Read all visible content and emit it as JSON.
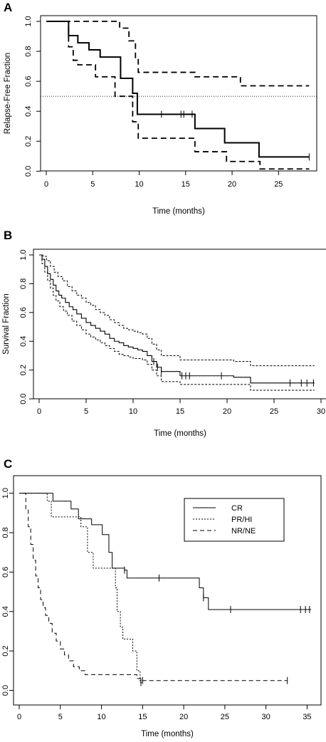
{
  "chart_data": [
    {
      "panel": "A",
      "type": "line",
      "step": true,
      "xlabel": "Time (months)",
      "ylabel": "Relapse-Free Fraction",
      "xlim": [
        0,
        28.5
      ],
      "ylim": [
        0,
        1
      ],
      "xticks": [
        0,
        5,
        10,
        15,
        20,
        25
      ],
      "yticks": [
        "0.0",
        "0.2",
        "0.4",
        "0.6",
        "0.8",
        "1.0"
      ],
      "reference_line": 0.5,
      "series": [
        {
          "role": "estimate",
          "style": "solid",
          "width": 2,
          "x": [
            0,
            2.4,
            3.4,
            4.6,
            5.8,
            8,
            9.3,
            9.8,
            16,
            19.2,
            22.9,
            28.3
          ],
          "y": [
            1.0,
            0.905,
            0.857,
            0.81,
            0.762,
            0.62,
            0.52,
            0.38,
            0.285,
            0.19,
            0.095,
            0.095
          ],
          "censor_x": [
            12.4,
            14.5,
            14.8,
            15.7,
            28.3
          ]
        },
        {
          "role": "upper-ci",
          "style": "dashed",
          "width": 1.8,
          "x": [
            0,
            2.5,
            7.9,
            8.9,
            9.6,
            9.9,
            16,
            20.9,
            28.3
          ],
          "y": [
            1.0,
            1.0,
            0.955,
            0.87,
            0.75,
            0.66,
            0.63,
            0.57,
            0.57
          ],
          "censor_x": []
        },
        {
          "role": "lower-ci",
          "style": "dashed",
          "width": 1.8,
          "x": [
            0,
            2.4,
            2.9,
            3.4,
            5.3,
            7.4,
            9.3,
            9.9,
            16,
            19.4,
            23,
            28.3
          ],
          "y": [
            1.0,
            0.83,
            0.74,
            0.71,
            0.63,
            0.5,
            0.33,
            0.22,
            0.13,
            0.065,
            0.015,
            0.015
          ],
          "censor_x": []
        }
      ]
    },
    {
      "panel": "B",
      "type": "line",
      "step": true,
      "xlabel": "Time (months)",
      "ylabel": "Survival Fraction",
      "xlim": [
        0,
        30
      ],
      "ylim": [
        0,
        1
      ],
      "xticks": [
        0,
        5,
        10,
        15,
        20,
        25,
        30
      ],
      "yticks": [
        "0.0",
        "0.2",
        "0.4",
        "0.6",
        "0.8",
        "1.0"
      ],
      "series": [
        {
          "role": "estimate",
          "style": "solid",
          "width": 1.1,
          "x": [
            0,
            0.3,
            0.6,
            0.9,
            1.2,
            1.5,
            1.8,
            2.1,
            2.4,
            2.8,
            3.2,
            3.6,
            4,
            4.5,
            5,
            5.5,
            6,
            6.5,
            7,
            7.5,
            8,
            8.5,
            9,
            9.5,
            10,
            10.5,
            11,
            11.5,
            12,
            12.5,
            13,
            15,
            20.7,
            22.5,
            29.3
          ],
          "y": [
            1.0,
            0.97,
            0.92,
            0.87,
            0.83,
            0.79,
            0.75,
            0.72,
            0.7,
            0.67,
            0.64,
            0.62,
            0.59,
            0.56,
            0.53,
            0.51,
            0.49,
            0.47,
            0.45,
            0.42,
            0.4,
            0.39,
            0.37,
            0.36,
            0.35,
            0.34,
            0.33,
            0.3,
            0.26,
            0.22,
            0.19,
            0.16,
            0.15,
            0.11,
            0.11
          ],
          "censor_x": [
            12.2,
            12.6,
            13,
            15.2,
            15.6,
            16,
            19.4,
            26.7,
            27.9,
            28.5,
            29.2
          ]
        },
        {
          "role": "upper-ci",
          "style": "dotted",
          "width": 1,
          "x": [
            0,
            0.4,
            0.8,
            1.2,
            1.6,
            2,
            2.5,
            3,
            3.5,
            4,
            4.5,
            5,
            5.5,
            6,
            6.5,
            7,
            7.5,
            8,
            8.5,
            9,
            9.5,
            10,
            10.5,
            11,
            11.5,
            12,
            12.5,
            13,
            15,
            20.7,
            22.5,
            29.3
          ],
          "y": [
            1.0,
            0.99,
            0.96,
            0.92,
            0.88,
            0.85,
            0.82,
            0.78,
            0.75,
            0.72,
            0.7,
            0.67,
            0.65,
            0.62,
            0.6,
            0.58,
            0.55,
            0.53,
            0.51,
            0.49,
            0.48,
            0.47,
            0.46,
            0.45,
            0.42,
            0.38,
            0.34,
            0.3,
            0.27,
            0.26,
            0.23,
            0.23
          ],
          "censor_x": []
        },
        {
          "role": "lower-ci",
          "style": "dotted",
          "width": 1,
          "x": [
            0,
            0.3,
            0.6,
            0.9,
            1.2,
            1.5,
            1.8,
            2.2,
            2.6,
            3,
            3.5,
            4,
            4.5,
            5,
            5.5,
            6,
            6.5,
            7,
            7.5,
            8,
            8.5,
            9,
            9.5,
            10,
            11,
            11.5,
            12,
            12.5,
            13,
            15,
            22.5,
            29.3
          ],
          "y": [
            1.0,
            0.94,
            0.88,
            0.82,
            0.77,
            0.72,
            0.68,
            0.64,
            0.61,
            0.58,
            0.54,
            0.51,
            0.48,
            0.45,
            0.43,
            0.41,
            0.39,
            0.37,
            0.35,
            0.33,
            0.31,
            0.3,
            0.29,
            0.28,
            0.27,
            0.24,
            0.2,
            0.16,
            0.12,
            0.1,
            0.06,
            0.06
          ],
          "censor_x": []
        }
      ]
    },
    {
      "panel": "C",
      "type": "line",
      "step": true,
      "xlabel": "Time (months)",
      "ylabel": "",
      "xlim": [
        0,
        36
      ],
      "ylim": [
        0,
        1
      ],
      "xticks": [
        0,
        5,
        10,
        15,
        20,
        25,
        30,
        35
      ],
      "yticks": [
        "0.0",
        "0.2",
        "0.4",
        "0.6",
        "0.8",
        "1.0"
      ],
      "legend_position": "top-right",
      "series": [
        {
          "name": "CR",
          "style": "solid",
          "width": 1,
          "x": [
            0,
            4.1,
            6.3,
            7.2,
            8.8,
            10.1,
            10.9,
            11.3,
            12.8,
            13.1,
            21.9,
            22.4,
            23,
            35.5
          ],
          "y": [
            1.0,
            0.96,
            0.92,
            0.87,
            0.84,
            0.79,
            0.7,
            0.62,
            0.61,
            0.57,
            0.52,
            0.47,
            0.41,
            0.41
          ],
          "censor_x": [
            12.8,
            17,
            22.4,
            25.7,
            34.2,
            34.8,
            35.3
          ]
        },
        {
          "name": "PR/HI",
          "style": "dotted",
          "width": 1,
          "x": [
            0,
            3.4,
            3.9,
            7.5,
            8.3,
            9,
            11.7,
            11.9,
            12.3,
            12.6,
            13.8,
            14.3,
            14.7,
            15
          ],
          "y": [
            1.0,
            0.96,
            0.88,
            0.83,
            0.7,
            0.62,
            0.52,
            0.4,
            0.32,
            0.26,
            0.2,
            0.1,
            0.04,
            0.04
          ],
          "censor_x": [
            14.8
          ]
        },
        {
          "name": "NR/NE",
          "style": "dashed",
          "width": 1,
          "x": [
            0.5,
            0.8,
            1.1,
            1.4,
            1.7,
            2,
            2.3,
            2.6,
            2.9,
            3.2,
            3.6,
            4,
            4.5,
            5,
            5.5,
            6,
            6.6,
            7.3,
            8,
            14.3,
            15,
            32.6
          ],
          "y": [
            1.0,
            0.92,
            0.83,
            0.74,
            0.66,
            0.58,
            0.52,
            0.46,
            0.42,
            0.38,
            0.34,
            0.29,
            0.25,
            0.21,
            0.18,
            0.15,
            0.12,
            0.1,
            0.08,
            0.06,
            0.05,
            0.05
          ],
          "censor_x": [
            15,
            32.6
          ]
        }
      ]
    }
  ]
}
